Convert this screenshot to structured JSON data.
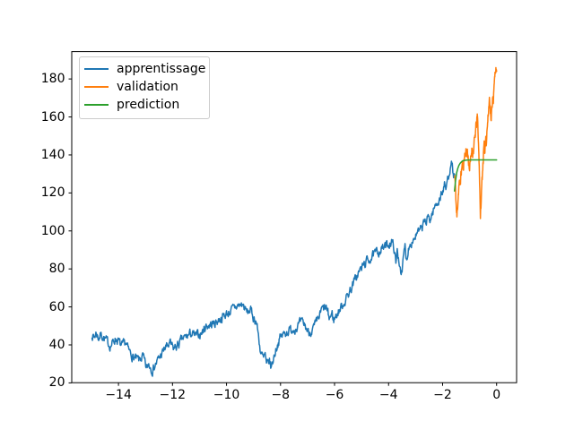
{
  "figure": {
    "background": "#ffffff"
  },
  "chart_data": {
    "type": "line",
    "title": "",
    "xlabel": "",
    "ylabel": "",
    "grid": false,
    "legend_position": "upper-left",
    "xlim": [
      -15.73,
      0.74
    ],
    "ylim": [
      20.1,
      194.4
    ],
    "xticks": {
      "values": [
        -14,
        -12,
        -10,
        -8,
        -6,
        -4,
        -2,
        0
      ],
      "labels": [
        "−14",
        "−12",
        "−10",
        "−8",
        "−6",
        "−4",
        "−2",
        "0"
      ]
    },
    "yticks": {
      "values": [
        20,
        40,
        60,
        80,
        100,
        120,
        140,
        160,
        180
      ],
      "labels": [
        "20",
        "40",
        "60",
        "80",
        "100",
        "120",
        "140",
        "160",
        "180"
      ]
    },
    "series": [
      {
        "name": "apprentissage",
        "color": "#1f77b4",
        "noise": {
          "seed": 7,
          "amp": 2.0,
          "persist": 0.55,
          "step": 0.016
        },
        "keypoints": [
          [
            -14.98,
            45.5
          ],
          [
            -14.9,
            44
          ],
          [
            -14.82,
            46.5
          ],
          [
            -14.74,
            43.5
          ],
          [
            -14.66,
            45.5
          ],
          [
            -14.58,
            44.5
          ],
          [
            -14.5,
            43
          ],
          [
            -14.44,
            42
          ],
          [
            -14.36,
            40.5
          ],
          [
            -14.3,
            39.5
          ],
          [
            -14.22,
            41
          ],
          [
            -14.11,
            43.5
          ],
          [
            -14.0,
            42
          ],
          [
            -13.89,
            38.8
          ],
          [
            -13.8,
            40
          ],
          [
            -13.73,
            41.2
          ],
          [
            -13.63,
            37
          ],
          [
            -13.56,
            35.7
          ],
          [
            -13.45,
            33.5
          ],
          [
            -13.35,
            32.5
          ],
          [
            -13.23,
            31.7
          ],
          [
            -13.1,
            34
          ],
          [
            -12.96,
            27
          ],
          [
            -12.88,
            30
          ],
          [
            -12.74,
            27
          ],
          [
            -12.58,
            31
          ],
          [
            -12.41,
            34.9
          ],
          [
            -12.25,
            38.8
          ],
          [
            -12.08,
            40.4
          ],
          [
            -11.97,
            38
          ],
          [
            -11.81,
            39.6
          ],
          [
            -11.64,
            42.8
          ],
          [
            -11.48,
            44.4
          ],
          [
            -11.31,
            46
          ],
          [
            -11.15,
            44.5
          ],
          [
            -11.0,
            45.5
          ],
          [
            -10.88,
            47
          ],
          [
            -10.77,
            50
          ],
          [
            -10.6,
            50.5
          ],
          [
            -10.44,
            51.5
          ],
          [
            -10.22,
            53.9
          ],
          [
            -10.0,
            56.3
          ],
          [
            -9.78,
            58.6
          ],
          [
            -9.6,
            60.5
          ],
          [
            -9.4,
            61.3
          ],
          [
            -9.3,
            58.5
          ],
          [
            -9.23,
            57
          ],
          [
            -9.12,
            58.6
          ],
          [
            -9.01,
            54.7
          ],
          [
            -8.9,
            52.3
          ],
          [
            -8.85,
            48.3
          ],
          [
            -8.79,
            42
          ],
          [
            -8.74,
            36.5
          ],
          [
            -8.63,
            32.5
          ],
          [
            -8.57,
            34.9
          ],
          [
            -8.52,
            28.6
          ],
          [
            -8.41,
            31.7
          ],
          [
            -8.35,
            27.8
          ],
          [
            -8.24,
            34.1
          ],
          [
            -8.13,
            39.6
          ],
          [
            -8.02,
            43.6
          ],
          [
            -7.91,
            45.2
          ],
          [
            -7.8,
            46.8
          ],
          [
            -7.6,
            48
          ],
          [
            -7.4,
            49.5
          ],
          [
            -7.25,
            51.5
          ],
          [
            -7.12,
            50.7
          ],
          [
            -6.96,
            46.5
          ],
          [
            -6.8,
            48.3
          ],
          [
            -6.64,
            52
          ],
          [
            -6.47,
            58.6
          ],
          [
            -6.31,
            59.4
          ],
          [
            -6.2,
            53.9
          ],
          [
            -6.09,
            56.3
          ],
          [
            -6.03,
            53.1
          ],
          [
            -5.92,
            56
          ],
          [
            -5.81,
            58.6
          ],
          [
            -5.66,
            62
          ],
          [
            -5.52,
            66
          ],
          [
            -5.38,
            70
          ],
          [
            -5.25,
            74
          ],
          [
            -5.11,
            78
          ],
          [
            -4.95,
            81.5
          ],
          [
            -4.78,
            84.5
          ],
          [
            -4.6,
            86.5
          ],
          [
            -4.44,
            88.5
          ],
          [
            -4.27,
            90.5
          ],
          [
            -4.11,
            91.8
          ],
          [
            -4.0,
            93
          ],
          [
            -3.89,
            94.5
          ],
          [
            -3.78,
            90.3
          ],
          [
            -3.73,
            82
          ],
          [
            -3.68,
            89
          ],
          [
            -3.62,
            85
          ],
          [
            -3.55,
            80
          ],
          [
            -3.5,
            77.6
          ],
          [
            -3.44,
            87
          ],
          [
            -3.39,
            91.8
          ],
          [
            -3.34,
            84.7
          ],
          [
            -3.25,
            92
          ],
          [
            -3.17,
            94.2
          ],
          [
            -3.09,
            95.5
          ],
          [
            -3.01,
            97.3
          ],
          [
            -2.9,
            99
          ],
          [
            -2.79,
            100.5
          ],
          [
            -2.72,
            103
          ],
          [
            -2.65,
            106
          ],
          [
            -2.6,
            104
          ],
          [
            -2.52,
            107.5
          ],
          [
            -2.45,
            106
          ],
          [
            -2.39,
            109
          ],
          [
            -2.31,
            112
          ],
          [
            -2.23,
            114
          ],
          [
            -2.15,
            116
          ],
          [
            -2.07,
            118.5
          ],
          [
            -1.99,
            121
          ],
          [
            -1.93,
            124
          ],
          [
            -1.88,
            122
          ],
          [
            -1.83,
            126
          ],
          [
            -1.78,
            129
          ],
          [
            -1.73,
            133
          ],
          [
            -1.7,
            137
          ],
          [
            -1.66,
            135
          ],
          [
            -1.62,
            131
          ],
          [
            -1.58,
            127.5
          ],
          [
            -1.55,
            129.5
          ]
        ]
      },
      {
        "name": "validation",
        "color": "#ff7f0e",
        "noise": {
          "seed": 11,
          "amp": 2.4,
          "persist": 0.5,
          "step": 0.008
        },
        "keypoints": [
          [
            -1.55,
            129
          ],
          [
            -1.53,
            124
          ],
          [
            -1.51,
            118
          ],
          [
            -1.49,
            111
          ],
          [
            -1.47,
            107
          ],
          [
            -1.45,
            112
          ],
          [
            -1.43,
            117
          ],
          [
            -1.41,
            121
          ],
          [
            -1.39,
            125
          ],
          [
            -1.36,
            124
          ],
          [
            -1.33,
            128
          ],
          [
            -1.3,
            132
          ],
          [
            -1.27,
            135
          ],
          [
            -1.24,
            133
          ],
          [
            -1.21,
            137
          ],
          [
            -1.18,
            140
          ],
          [
            -1.15,
            142
          ],
          [
            -1.12,
            140
          ],
          [
            -1.09,
            143
          ],
          [
            -1.06,
            139
          ],
          [
            -1.03,
            136
          ],
          [
            -1.0,
            133
          ],
          [
            -0.97,
            136
          ],
          [
            -0.94,
            140
          ],
          [
            -0.91,
            144
          ],
          [
            -0.88,
            141
          ],
          [
            -0.85,
            143
          ],
          [
            -0.82,
            147
          ],
          [
            -0.79,
            151
          ],
          [
            -0.76,
            155
          ],
          [
            -0.73,
            158
          ],
          [
            -0.71,
            160
          ],
          [
            -0.69,
            154
          ],
          [
            -0.67,
            146
          ],
          [
            -0.65,
            137
          ],
          [
            -0.63,
            127
          ],
          [
            -0.61,
            116
          ],
          [
            -0.6,
            106
          ],
          [
            -0.58,
            113
          ],
          [
            -0.56,
            120
          ],
          [
            -0.54,
            127
          ],
          [
            -0.52,
            132
          ],
          [
            -0.5,
            137
          ],
          [
            -0.48,
            142
          ],
          [
            -0.46,
            145
          ],
          [
            -0.44,
            141
          ],
          [
            -0.42,
            146
          ],
          [
            -0.4,
            150
          ],
          [
            -0.38,
            147
          ],
          [
            -0.36,
            152
          ],
          [
            -0.34,
            156
          ],
          [
            -0.32,
            159
          ],
          [
            -0.3,
            163
          ],
          [
            -0.28,
            167
          ],
          [
            -0.26,
            171
          ],
          [
            -0.24,
            166
          ],
          [
            -0.22,
            161
          ],
          [
            -0.2,
            158
          ],
          [
            -0.18,
            163
          ],
          [
            -0.16,
            168
          ],
          [
            -0.14,
            172
          ],
          [
            -0.12,
            170
          ],
          [
            -0.1,
            174
          ],
          [
            -0.08,
            178
          ],
          [
            -0.06,
            182
          ],
          [
            -0.04,
            185
          ],
          [
            -0.02,
            187.5
          ],
          [
            -0.01,
            186
          ],
          [
            0.0,
            184
          ]
        ]
      },
      {
        "name": "prediction",
        "color": "#2ca02c",
        "noise": {
          "seed": 1,
          "amp": 0,
          "persist": 0,
          "step": 0.05
        },
        "keypoints": [
          [
            -1.56,
            121
          ],
          [
            -1.52,
            126.5
          ],
          [
            -1.48,
            130.5
          ],
          [
            -1.44,
            132.8
          ],
          [
            -1.4,
            134.4
          ],
          [
            -1.35,
            135.6
          ],
          [
            -1.3,
            136.4
          ],
          [
            -1.25,
            136.9
          ],
          [
            -1.2,
            137.1
          ],
          [
            -1.1,
            137.3
          ],
          [
            -1.0,
            137.4
          ],
          [
            0.0,
            137.4
          ]
        ]
      }
    ]
  }
}
